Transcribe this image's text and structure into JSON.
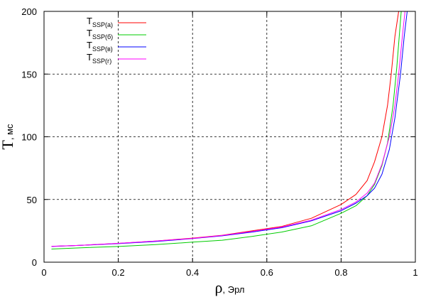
{
  "chart_data": {
    "type": "line",
    "xlabel": {
      "symbol": "ρ",
      "unit": ", Эрл"
    },
    "ylabel": {
      "symbol": "T",
      "unit": ", мс"
    },
    "xlim": [
      0,
      1
    ],
    "ylim": [
      0,
      200
    ],
    "xticks": [
      "0",
      "0.2",
      "0.4",
      "0.6",
      "0.8",
      "1"
    ],
    "yticks": [
      "0",
      "50",
      "100",
      "150",
      "200"
    ],
    "grid": true,
    "legend_position": "top-left",
    "series": [
      {
        "name": {
          "main": "T",
          "sub": "SSP(a)"
        },
        "color": "#ff0000",
        "x": [
          0.02,
          0.1,
          0.2,
          0.3,
          0.4,
          0.48,
          0.56,
          0.64,
          0.72,
          0.8,
          0.84,
          0.87,
          0.89,
          0.91,
          0.925,
          0.935,
          0.945,
          0.955
        ],
        "y": [
          12.6,
          13.5,
          15,
          16.8,
          19.2,
          21.5,
          25,
          28.5,
          35,
          46,
          54,
          65,
          80,
          100,
          125,
          150,
          180,
          200
        ]
      },
      {
        "name": {
          "main": "T",
          "sub": "SSP(б)"
        },
        "color": "#00cc00",
        "x": [
          0.02,
          0.1,
          0.2,
          0.3,
          0.4,
          0.48,
          0.56,
          0.64,
          0.72,
          0.8,
          0.84,
          0.87,
          0.89,
          0.91,
          0.925,
          0.94,
          0.95,
          0.962
        ],
        "y": [
          10.5,
          11.5,
          12.5,
          14,
          16,
          17.5,
          20.5,
          24,
          29,
          39,
          45,
          53,
          62,
          77,
          95,
          125,
          155,
          200
        ]
      },
      {
        "name": {
          "main": "T",
          "sub": "SSP(в)"
        },
        "color": "#0000ff",
        "x": [
          0.02,
          0.1,
          0.2,
          0.3,
          0.4,
          0.48,
          0.56,
          0.64,
          0.72,
          0.8,
          0.84,
          0.87,
          0.89,
          0.91,
          0.93,
          0.945,
          0.96,
          0.97,
          0.978
        ],
        "y": [
          12.5,
          13.4,
          14.8,
          16.5,
          18.8,
          21,
          24,
          27.5,
          33,
          41,
          47,
          53,
          59,
          70,
          90,
          115,
          150,
          180,
          200
        ]
      },
      {
        "name": {
          "main": "T",
          "sub": "SSP(г)"
        },
        "color": "#ff00ff",
        "x": [
          0.02,
          0.1,
          0.2,
          0.3,
          0.4,
          0.48,
          0.56,
          0.64,
          0.72,
          0.8,
          0.84,
          0.87,
          0.89,
          0.91,
          0.93,
          0.945,
          0.955,
          0.965,
          0.972
        ],
        "y": [
          12.7,
          13.5,
          15,
          16.8,
          19,
          21.3,
          24.5,
          28,
          33.5,
          42,
          48,
          55,
          63,
          78,
          100,
          125,
          150,
          180,
          200
        ]
      }
    ]
  }
}
